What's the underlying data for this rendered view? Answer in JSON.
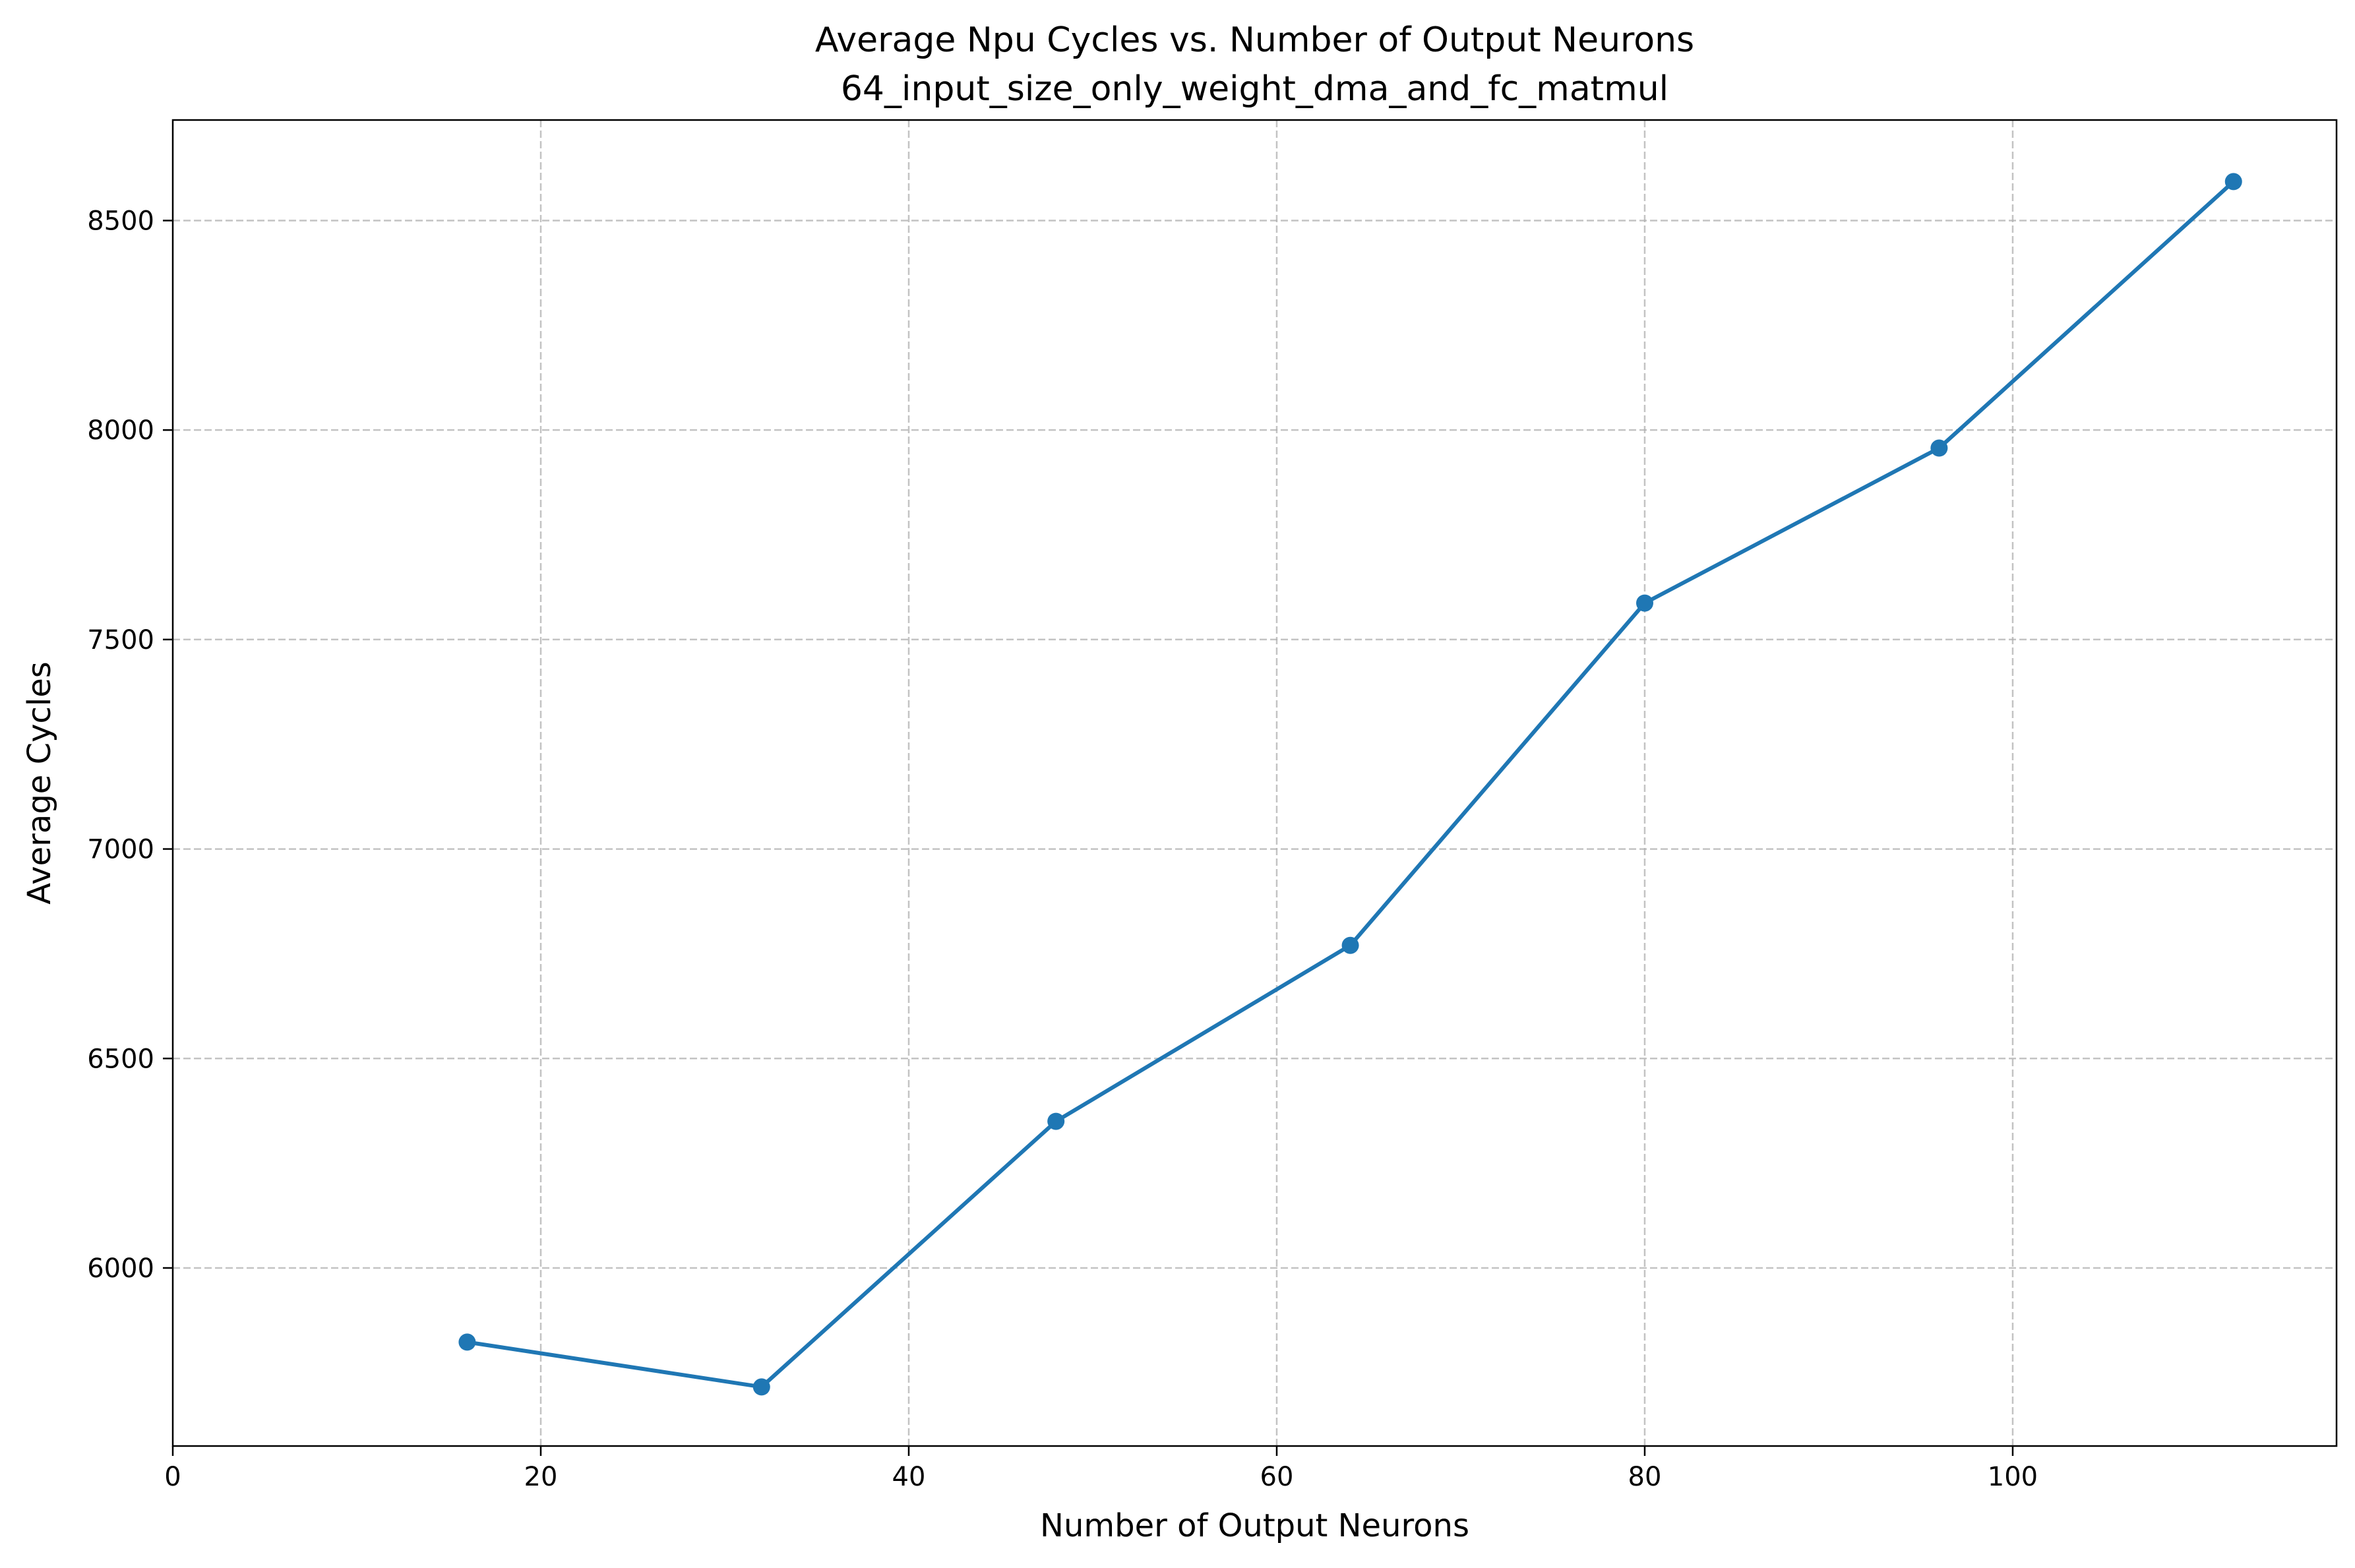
{
  "chart_data": {
    "type": "line",
    "title": "Average Npu Cycles vs. Number of Output Neurons",
    "subtitle": "64_input_size_only_weight_dma_and_fc_matmul",
    "xlabel": "Number of Output Neurons",
    "ylabel": "Average Cycles",
    "xlim": [
      0,
      117.6
    ],
    "ylim": [
      5575,
      8740
    ],
    "x_ticks": [
      0,
      20,
      40,
      60,
      80,
      100
    ],
    "y_ticks": [
      6000,
      6500,
      7000,
      7500,
      8000,
      8500
    ],
    "grid": true,
    "series": [
      {
        "x": [
          16,
          32,
          48,
          64,
          80,
          96,
          112
        ],
        "values": [
          5823,
          5716,
          6350,
          6770,
          7587,
          7957,
          8593
        ],
        "color": "#1f77b4",
        "marker": "circle"
      }
    ]
  }
}
